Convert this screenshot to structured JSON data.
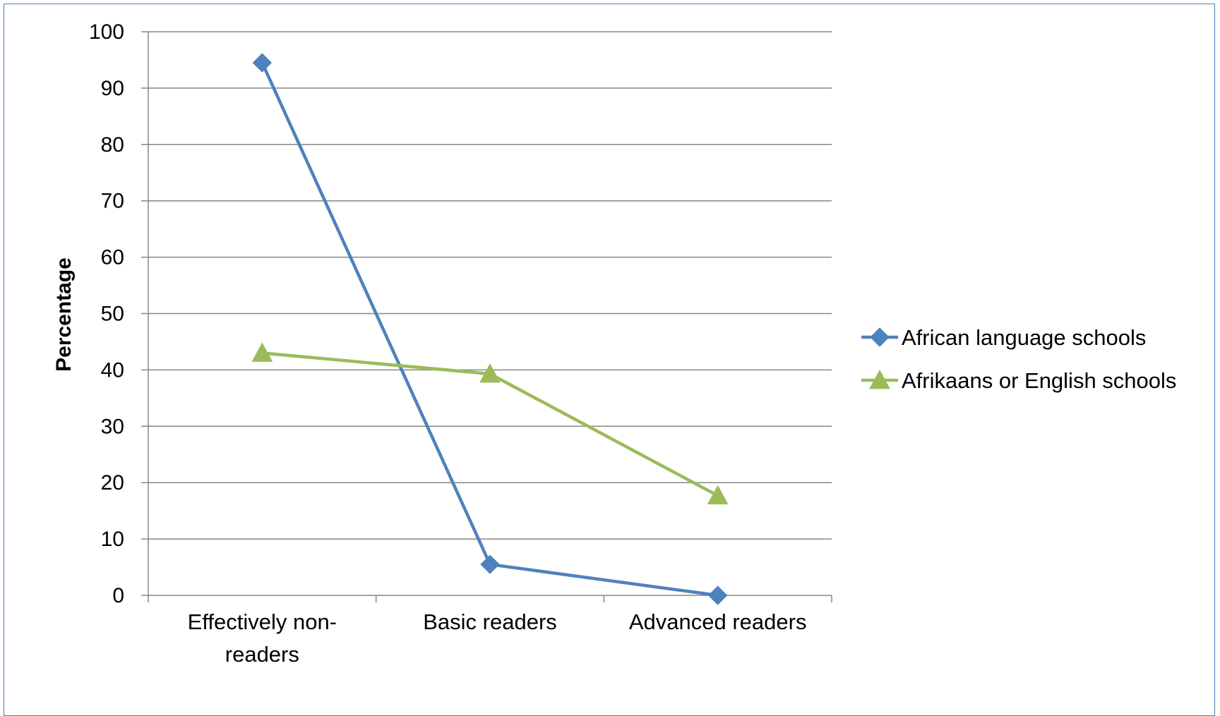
{
  "chart_data": {
    "type": "line",
    "categories": [
      "Effectively non-readers",
      "Basic readers",
      "Advanced readers"
    ],
    "category_lines": [
      [
        "Effectively non-",
        "readers"
      ],
      [
        "Basic readers"
      ],
      [
        "Advanced readers"
      ]
    ],
    "series": [
      {
        "name": "African language schools",
        "values": [
          94.5,
          5.5,
          0
        ],
        "color": "#4f81bd",
        "marker": "diamond"
      },
      {
        "name": "Afrikaans or English schools",
        "values": [
          43,
          39.3,
          17.7
        ],
        "color": "#9bbb59",
        "marker": "triangle"
      }
    ],
    "ylabel": "Percentage",
    "ylim": [
      0,
      100
    ],
    "yticks": [
      0,
      10,
      20,
      30,
      40,
      50,
      60,
      70,
      80,
      90,
      100
    ],
    "grid": true,
    "legend_position": "right"
  }
}
